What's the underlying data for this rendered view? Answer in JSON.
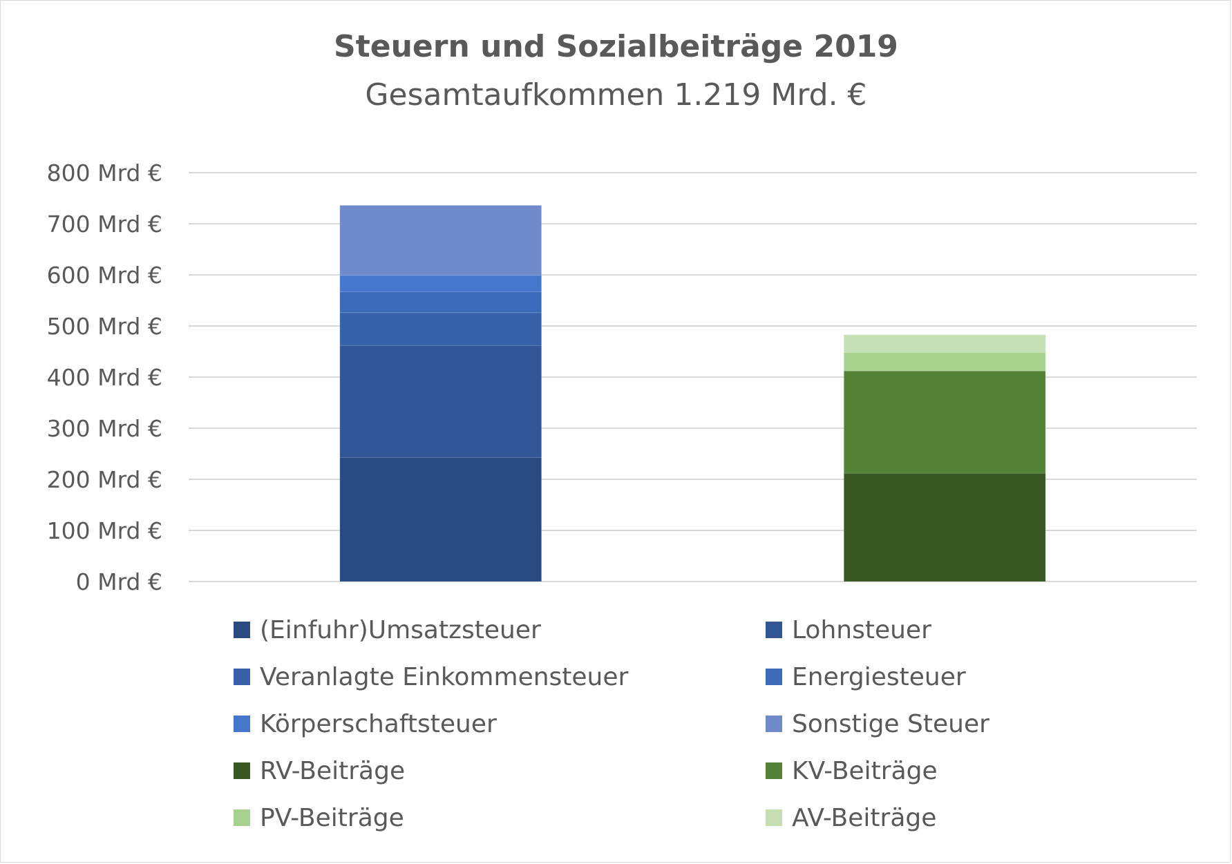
{
  "chart_data": {
    "type": "bar",
    "stacked": true,
    "title": "Steuern und Sozialbeiträge 2019",
    "subtitle": "Gesamtaufkommen 1.219 Mrd. €",
    "xlabel": "",
    "ylabel": "",
    "ylim": [
      0,
      800
    ],
    "yticks": [
      0,
      100,
      200,
      300,
      400,
      500,
      600,
      700,
      800
    ],
    "ytick_labels": [
      "0 Mrd €",
      "100 Mrd €",
      "200 Mrd €",
      "300 Mrd €",
      "400 Mrd €",
      "500 Mrd €",
      "600 Mrd €",
      "700 Mrd €",
      "800 Mrd €"
    ],
    "grid": true,
    "legend_position": "bottom",
    "categories": [
      "",
      ""
    ],
    "series": [
      {
        "name": "(Einfuhr)Umsatzsteuer",
        "color": "#2b4a82",
        "values": [
          243,
          0
        ]
      },
      {
        "name": "Lohnsteuer",
        "color": "#315595",
        "values": [
          219,
          0
        ]
      },
      {
        "name": "Veranlagte Einkommensteuer",
        "color": "#3660a8",
        "values": [
          64,
          0
        ]
      },
      {
        "name": "Energiesteuer",
        "color": "#3d6bbb",
        "values": [
          41,
          0
        ]
      },
      {
        "name": "Körperschaftsteuer",
        "color": "#4677cc",
        "values": [
          32,
          0
        ]
      },
      {
        "name": "Sonstige Steuer",
        "color": "#708bcc",
        "values": [
          137,
          0
        ]
      },
      {
        "name": "RV-Beiträge",
        "color": "#385723",
        "values": [
          0,
          212
        ]
      },
      {
        "name": "KV-Beiträge",
        "color": "#538135",
        "values": [
          0,
          200
        ]
      },
      {
        "name": "PV-Beiträge",
        "color": "#a9d18e",
        "values": [
          0,
          36
        ]
      },
      {
        "name": "AV-Beiträge",
        "color": "#c5e0b4",
        "values": [
          0,
          35
        ]
      }
    ]
  }
}
